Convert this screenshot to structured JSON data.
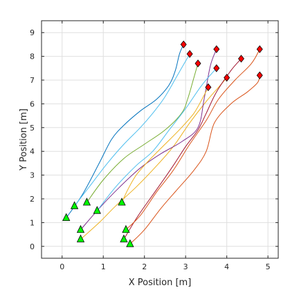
{
  "chart_data": {
    "type": "line",
    "xlabel": "X Position [m]",
    "ylabel": "Y Position [m]",
    "xlim": [
      -0.5,
      5.25
    ],
    "ylim": [
      -0.5,
      9.5
    ],
    "xticks": [
      0,
      1,
      2,
      3,
      4,
      5
    ],
    "yticks": [
      0,
      1,
      2,
      3,
      4,
      5,
      6,
      7,
      8,
      9
    ],
    "grid": true,
    "start_marker": "green triangle",
    "end_marker": "red diamond",
    "series": [
      {
        "color": "#0072BD",
        "x": [
          0.1,
          0.5,
          0.9,
          1.2,
          1.5,
          1.9,
          2.3,
          2.6,
          2.75,
          2.85,
          2.95
        ],
        "y": [
          1.2,
          2.2,
          3.5,
          4.5,
          5.1,
          5.7,
          6.2,
          6.8,
          7.4,
          8.1,
          8.5
        ]
      },
      {
        "color": "#D95319",
        "x": [
          1.65,
          2.0,
          2.4,
          2.8,
          3.2,
          3.5,
          3.7,
          4.1,
          4.5,
          4.75,
          4.8
        ],
        "y": [
          0.1,
          0.7,
          1.6,
          2.4,
          3.2,
          4.0,
          5.2,
          6.0,
          6.5,
          6.9,
          7.2
        ]
      },
      {
        "color": "#EDB120",
        "x": [
          0.45,
          0.9,
          1.3,
          1.8,
          2.3,
          2.7,
          3.1,
          3.5,
          3.8,
          4.0
        ],
        "y": [
          0.3,
          1.0,
          1.7,
          2.5,
          3.4,
          4.2,
          5.2,
          6.1,
          6.7,
          7.1
        ]
      },
      {
        "color": "#7E2F8E",
        "x": [
          0.45,
          0.9,
          1.4,
          1.9,
          2.4,
          2.9,
          3.3,
          3.45,
          3.6,
          3.75
        ],
        "y": [
          0.7,
          1.6,
          2.5,
          3.3,
          3.9,
          4.4,
          5.0,
          6.2,
          7.6,
          8.3
        ]
      },
      {
        "color": "#77AC30",
        "x": [
          0.6,
          1.0,
          1.5,
          2.0,
          2.5,
          2.9,
          3.05,
          3.2,
          3.3
        ],
        "y": [
          1.85,
          2.8,
          3.7,
          4.3,
          4.9,
          5.6,
          6.2,
          7.1,
          7.7
        ]
      },
      {
        "color": "#4DBEEE",
        "x": [
          0.85,
          1.3,
          1.8,
          2.2,
          2.6,
          3.0,
          3.4,
          3.75
        ],
        "y": [
          1.5,
          2.5,
          3.4,
          4.0,
          4.9,
          5.8,
          6.8,
          7.5
        ]
      },
      {
        "color": "#A2142F",
        "x": [
          1.5,
          1.85,
          2.3,
          2.7,
          3.0,
          3.3,
          3.5,
          3.75,
          4.1,
          4.35
        ],
        "y": [
          0.3,
          1.3,
          2.4,
          3.4,
          4.2,
          4.9,
          5.6,
          6.5,
          7.4,
          7.9
        ]
      },
      {
        "color": "#D95319",
        "x": [
          1.55,
          1.9,
          2.3,
          2.7,
          3.1,
          3.5,
          3.8,
          4.2,
          4.6,
          4.8
        ],
        "y": [
          0.7,
          1.3,
          2.3,
          3.2,
          4.3,
          5.3,
          6.2,
          7.0,
          7.7,
          8.3
        ]
      },
      {
        "color": "#EDB120",
        "x": [
          1.45,
          1.6,
          1.8,
          2.1,
          2.5,
          2.9,
          3.2,
          3.4,
          3.55
        ],
        "y": [
          1.85,
          2.4,
          3.0,
          3.6,
          4.3,
          5.0,
          5.6,
          6.2,
          6.7
        ]
      },
      {
        "color": "#4DBEEE",
        "x": [
          0.3,
          0.7,
          1.1,
          1.5,
          1.9,
          2.2,
          2.5,
          2.8,
          3.1
        ],
        "y": [
          1.7,
          2.6,
          3.5,
          4.3,
          5.0,
          5.6,
          6.3,
          7.2,
          8.1
        ]
      }
    ]
  }
}
